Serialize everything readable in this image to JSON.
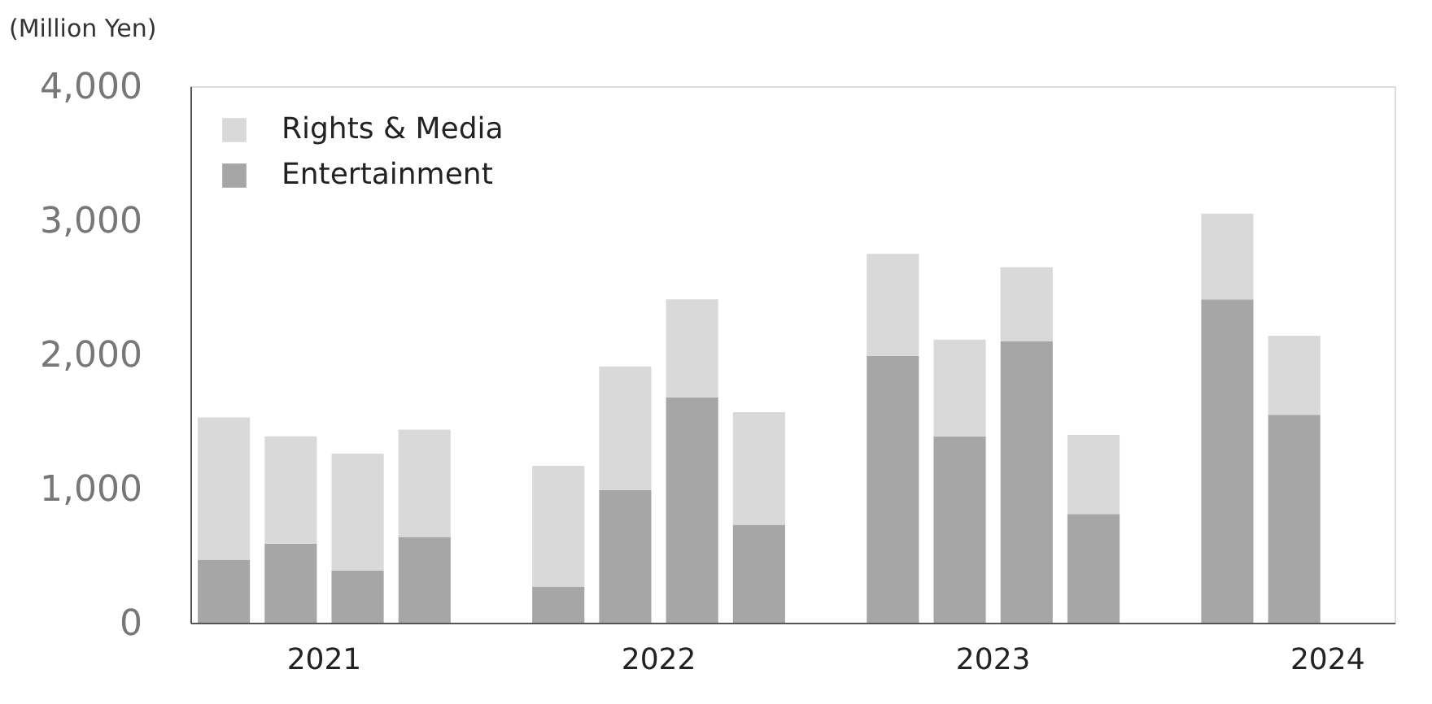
{
  "chart_data": {
    "type": "bar",
    "stacked": true,
    "ylabel": "(Million Yen)",
    "categories": [
      null,
      "2021",
      null,
      null,
      null,
      null,
      "2022",
      null,
      null,
      null,
      null,
      "2023",
      null,
      null,
      null,
      null,
      "2024",
      null
    ],
    "series": [
      {
        "name": "Entertainment",
        "color": "#a6a6a6",
        "values": [
          470,
          590,
          390,
          640,
          null,
          270,
          990,
          1680,
          730,
          null,
          1990,
          1390,
          2100,
          810,
          null,
          2410,
          1550,
          null
        ]
      },
      {
        "name": "Rights & Media",
        "color": "#d9d9d9",
        "values": [
          1060,
          800,
          870,
          800,
          null,
          900,
          920,
          730,
          840,
          null,
          760,
          720,
          550,
          590,
          null,
          640,
          590,
          null
        ]
      }
    ],
    "ylim": [
      0,
      4000
    ],
    "yticks": [
      0,
      {
        "value": 1000,
        "label": "1,000"
      },
      {
        "value": 2000,
        "label": "2,000"
      },
      {
        "value": 3000,
        "label": "3,000"
      },
      {
        "value": 4000,
        "label": "4,000"
      }
    ],
    "grid": false,
    "legend": "top left"
  }
}
